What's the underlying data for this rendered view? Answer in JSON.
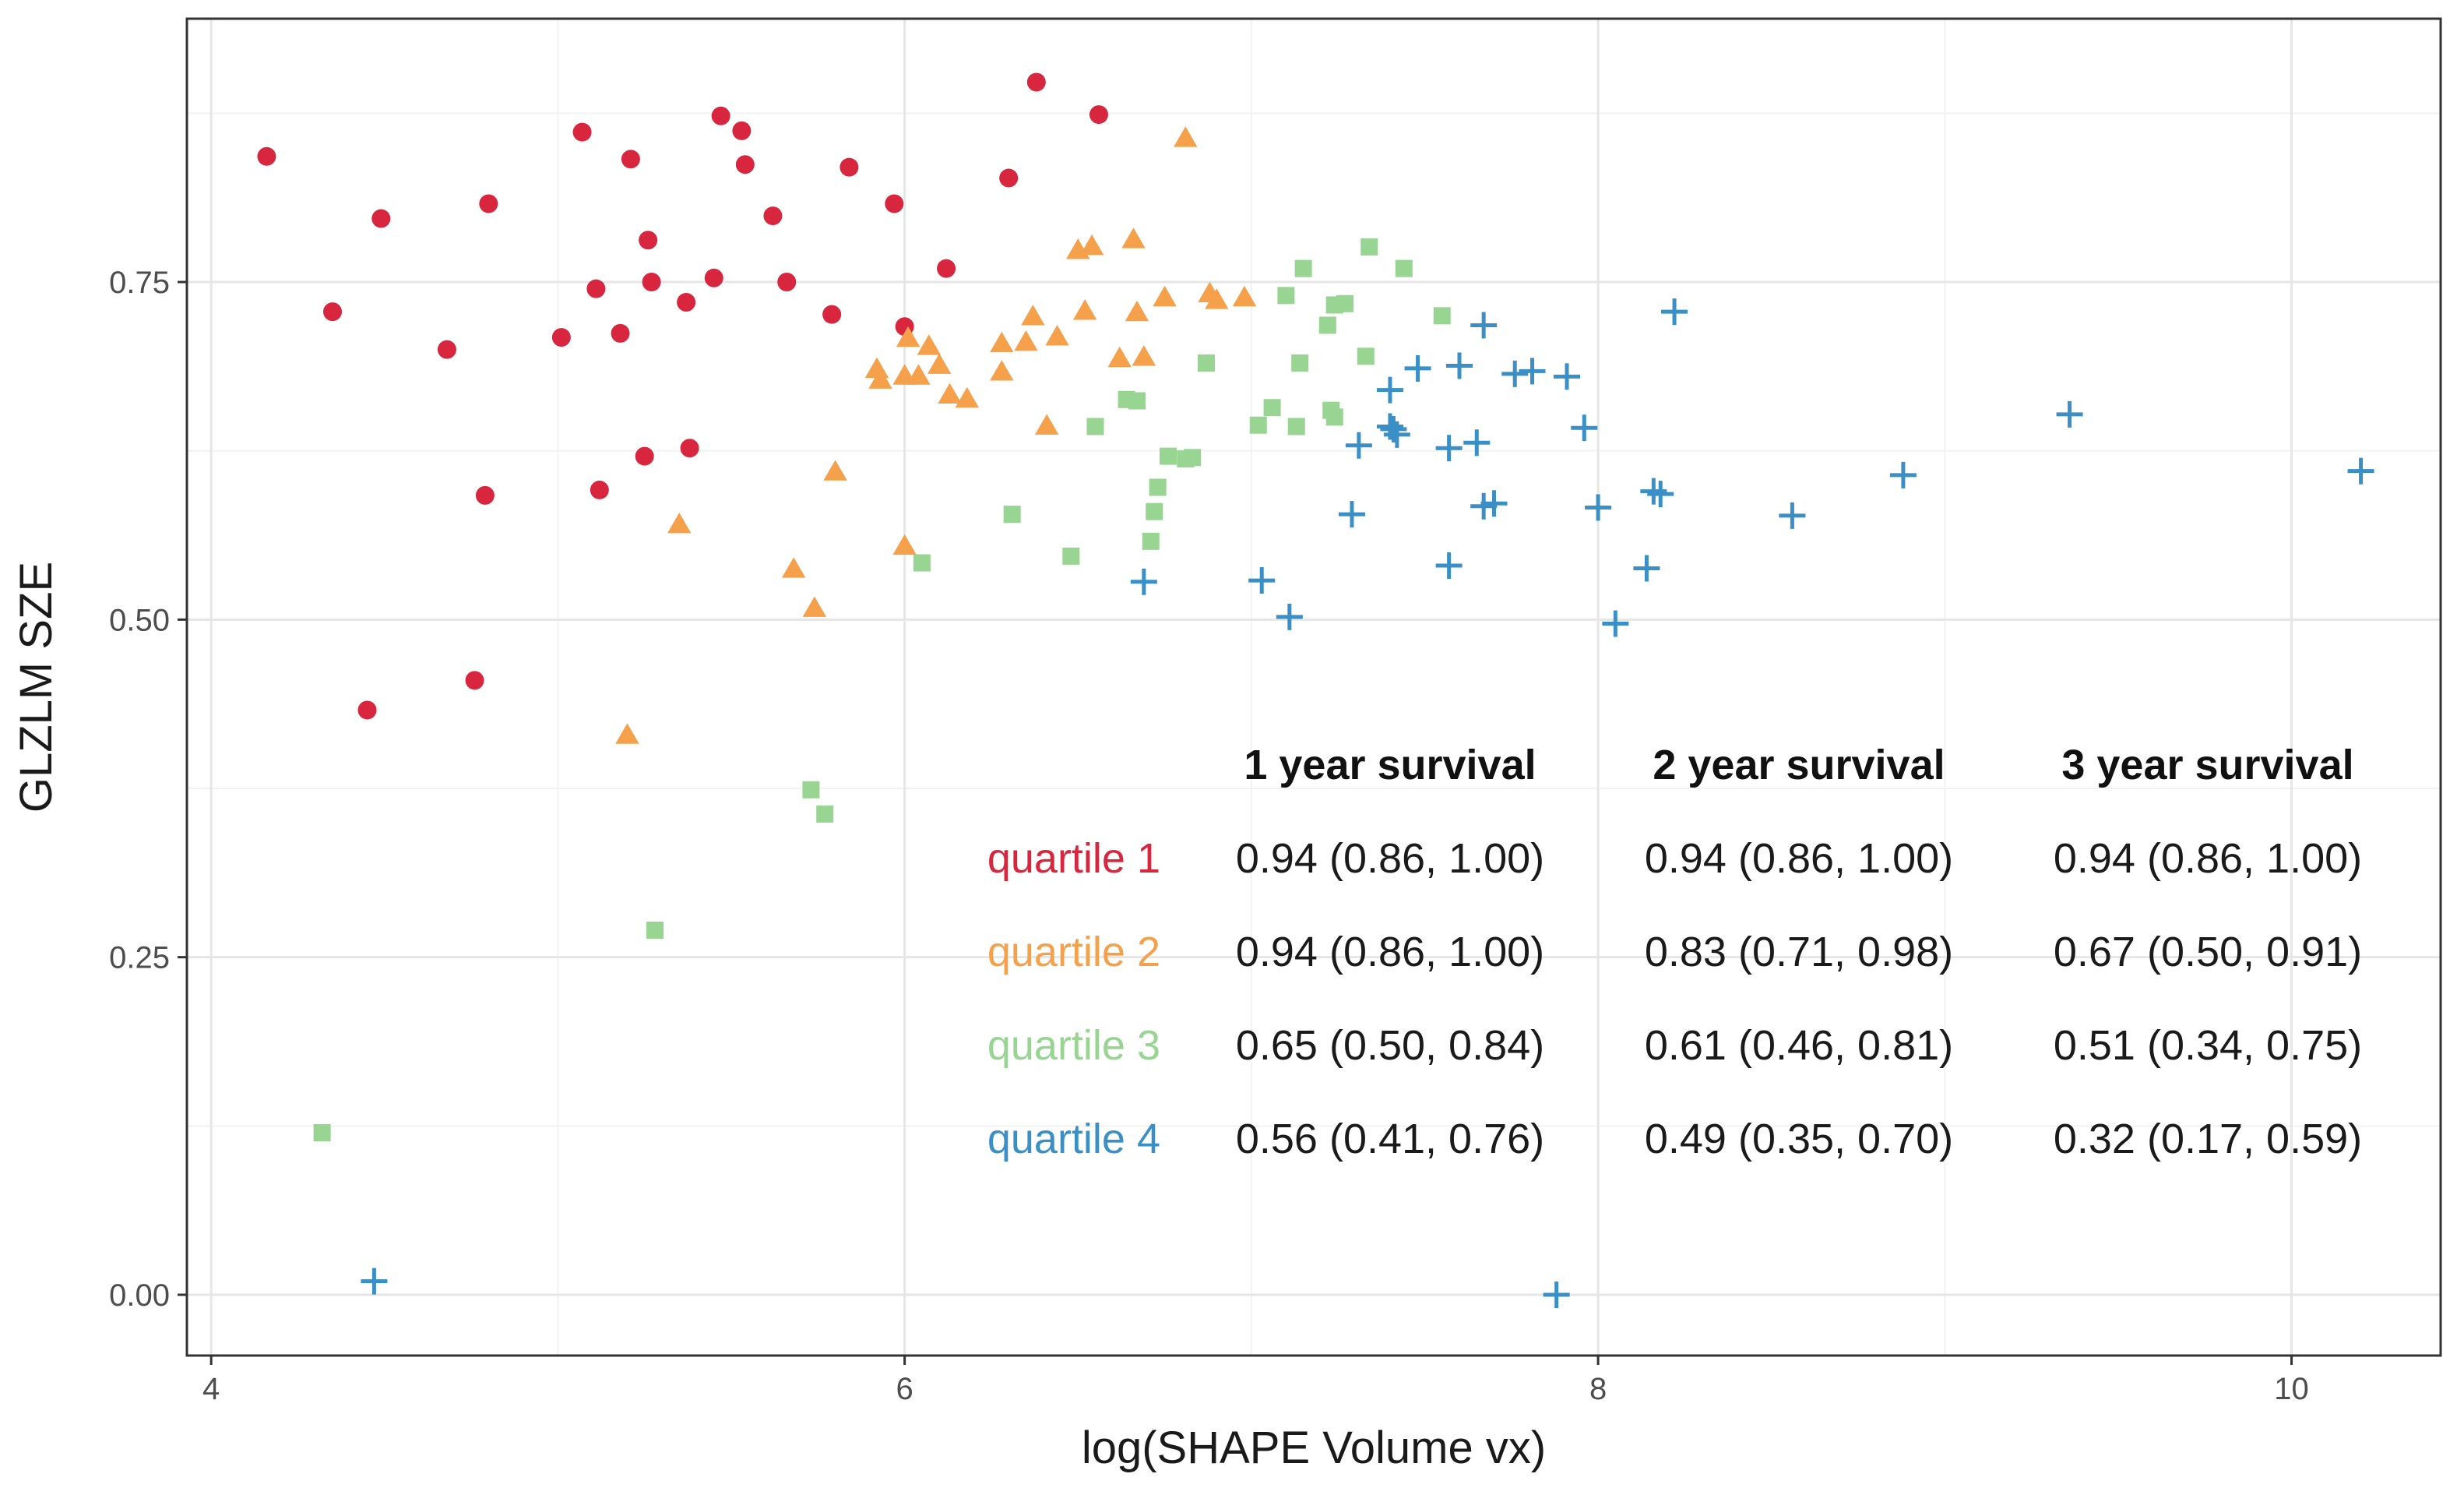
{
  "chart_data": {
    "type": "scatter",
    "title": "",
    "xlabel": "log(SHAPE Volume vx)",
    "ylabel": "GLZLM SZE",
    "xlim": [
      3.93,
      10.43
    ],
    "ylim": [
      -0.045,
      0.945
    ],
    "x_ticks": [
      4,
      6,
      8,
      10
    ],
    "x_tick_labels": [
      "4",
      "6",
      "8",
      "10"
    ],
    "y_ticks": [
      0.0,
      0.25,
      0.5,
      0.75
    ],
    "y_tick_labels": [
      "0.00",
      "0.25",
      "0.50",
      "0.75"
    ],
    "grid": true,
    "series": [
      {
        "name": "quartile 1",
        "marker": "circle",
        "color": "#D7263D",
        "points": [
          [
            4.16,
            0.843
          ],
          [
            4.35,
            0.728
          ],
          [
            4.49,
            0.797
          ],
          [
            4.68,
            0.7
          ],
          [
            4.8,
            0.808
          ],
          [
            5.01,
            0.709
          ],
          [
            5.07,
            0.861
          ],
          [
            5.11,
            0.745
          ],
          [
            5.18,
            0.712
          ],
          [
            5.21,
            0.841
          ],
          [
            5.26,
            0.781
          ],
          [
            5.27,
            0.75
          ],
          [
            5.37,
            0.735
          ],
          [
            5.45,
            0.753
          ],
          [
            5.47,
            0.873
          ],
          [
            5.53,
            0.862
          ],
          [
            5.54,
            0.837
          ],
          [
            5.62,
            0.799
          ],
          [
            5.66,
            0.75
          ],
          [
            5.79,
            0.726
          ],
          [
            5.84,
            0.835
          ],
          [
            5.97,
            0.808
          ],
          [
            6.0,
            0.717
          ],
          [
            6.12,
            0.76
          ],
          [
            6.3,
            0.827
          ],
          [
            6.38,
            0.898
          ],
          [
            6.56,
            0.874
          ],
          [
            5.12,
            0.596
          ],
          [
            5.25,
            0.621
          ],
          [
            5.38,
            0.627
          ],
          [
            4.79,
            0.592
          ],
          [
            4.45,
            0.433
          ],
          [
            4.76,
            0.455
          ]
        ]
      },
      {
        "name": "quartile 2",
        "marker": "triangle",
        "color": "#F5A04A",
        "points": [
          [
            6.81,
            0.856
          ],
          [
            6.5,
            0.773
          ],
          [
            6.54,
            0.776
          ],
          [
            6.66,
            0.781
          ],
          [
            6.35,
            0.705
          ],
          [
            6.37,
            0.724
          ],
          [
            6.44,
            0.709
          ],
          [
            6.52,
            0.728
          ],
          [
            6.62,
            0.693
          ],
          [
            6.67,
            0.727
          ],
          [
            6.69,
            0.694
          ],
          [
            6.75,
            0.738
          ],
          [
            6.88,
            0.741
          ],
          [
            6.9,
            0.736
          ],
          [
            6.98,
            0.738
          ],
          [
            5.92,
            0.685
          ],
          [
            5.93,
            0.677
          ],
          [
            6.0,
            0.68
          ],
          [
            6.01,
            0.708
          ],
          [
            6.04,
            0.68
          ],
          [
            6.07,
            0.702
          ],
          [
            6.1,
            0.688
          ],
          [
            6.13,
            0.666
          ],
          [
            6.18,
            0.663
          ],
          [
            6.28,
            0.704
          ],
          [
            6.28,
            0.683
          ],
          [
            6.41,
            0.643
          ],
          [
            6.0,
            0.554
          ],
          [
            5.8,
            0.609
          ],
          [
            5.35,
            0.57
          ],
          [
            5.68,
            0.537
          ],
          [
            5.74,
            0.508
          ],
          [
            5.2,
            0.414
          ]
        ]
      },
      {
        "name": "quartile 3",
        "marker": "square",
        "color": "#98D492",
        "points": [
          [
            7.34,
            0.776
          ],
          [
            7.44,
            0.76
          ],
          [
            7.15,
            0.76
          ],
          [
            7.1,
            0.74
          ],
          [
            7.24,
            0.733
          ],
          [
            7.27,
            0.734
          ],
          [
            7.22,
            0.718
          ],
          [
            7.33,
            0.695
          ],
          [
            7.55,
            0.725
          ],
          [
            7.14,
            0.69
          ],
          [
            6.87,
            0.69
          ],
          [
            7.06,
            0.657
          ],
          [
            7.02,
            0.644
          ],
          [
            7.13,
            0.643
          ],
          [
            7.23,
            0.655
          ],
          [
            7.24,
            0.65
          ],
          [
            6.64,
            0.663
          ],
          [
            6.67,
            0.662
          ],
          [
            6.55,
            0.643
          ],
          [
            6.76,
            0.621
          ],
          [
            6.81,
            0.619
          ],
          [
            6.83,
            0.62
          ],
          [
            6.73,
            0.598
          ],
          [
            6.72,
            0.58
          ],
          [
            6.71,
            0.558
          ],
          [
            6.05,
            0.542
          ],
          [
            6.31,
            0.578
          ],
          [
            6.48,
            0.547
          ],
          [
            5.73,
            0.374
          ],
          [
            5.77,
            0.356
          ],
          [
            5.28,
            0.27
          ],
          [
            4.32,
            0.12
          ]
        ]
      },
      {
        "name": "quartile 4",
        "marker": "plus",
        "color": "#3A8FC7",
        "points": [
          [
            8.22,
            0.728
          ],
          [
            7.67,
            0.718
          ],
          [
            7.4,
            0.67
          ],
          [
            7.48,
            0.686
          ],
          [
            7.6,
            0.688
          ],
          [
            7.76,
            0.682
          ],
          [
            7.81,
            0.684
          ],
          [
            7.91,
            0.68
          ],
          [
            7.96,
            0.642
          ],
          [
            7.4,
            0.643
          ],
          [
            7.41,
            0.641
          ],
          [
            7.42,
            0.637
          ],
          [
            7.31,
            0.629
          ],
          [
            7.57,
            0.627
          ],
          [
            7.65,
            0.631
          ],
          [
            7.67,
            0.584
          ],
          [
            7.7,
            0.586
          ],
          [
            7.29,
            0.578
          ],
          [
            8.0,
            0.583
          ],
          [
            8.16,
            0.595
          ],
          [
            8.18,
            0.593
          ],
          [
            8.56,
            0.577
          ],
          [
            8.88,
            0.607
          ],
          [
            9.36,
            0.652
          ],
          [
            10.2,
            0.61
          ],
          [
            6.69,
            0.528
          ],
          [
            7.03,
            0.529
          ],
          [
            7.11,
            0.502
          ],
          [
            7.57,
            0.54
          ],
          [
            8.14,
            0.538
          ],
          [
            8.05,
            0.497
          ],
          [
            4.47,
            0.01
          ],
          [
            7.88,
            0.0
          ]
        ]
      }
    ],
    "annotation_table": {
      "columns": [
        "1 year survival",
        "2 year survival",
        "3 year survival"
      ],
      "rows": [
        {
          "label": "quartile 1",
          "color": "#D7263D",
          "values": [
            "0.94 (0.86, 1.00)",
            "0.94 (0.86, 1.00)",
            "0.94 (0.86, 1.00)"
          ]
        },
        {
          "label": "quartile 2",
          "color": "#F5A04A",
          "values": [
            "0.94 (0.86, 1.00)",
            "0.83 (0.71, 0.98)",
            "0.67 (0.50, 0.91)"
          ]
        },
        {
          "label": "quartile 3",
          "color": "#98D492",
          "values": [
            "0.65 (0.50, 0.84)",
            "0.61 (0.46, 0.81)",
            "0.51 (0.34, 0.75)"
          ]
        },
        {
          "label": "quartile 4",
          "color": "#3A8FC7",
          "values": [
            "0.56 (0.41, 0.76)",
            "0.49 (0.35, 0.70)",
            "0.32 (0.17, 0.59)"
          ]
        }
      ]
    }
  }
}
